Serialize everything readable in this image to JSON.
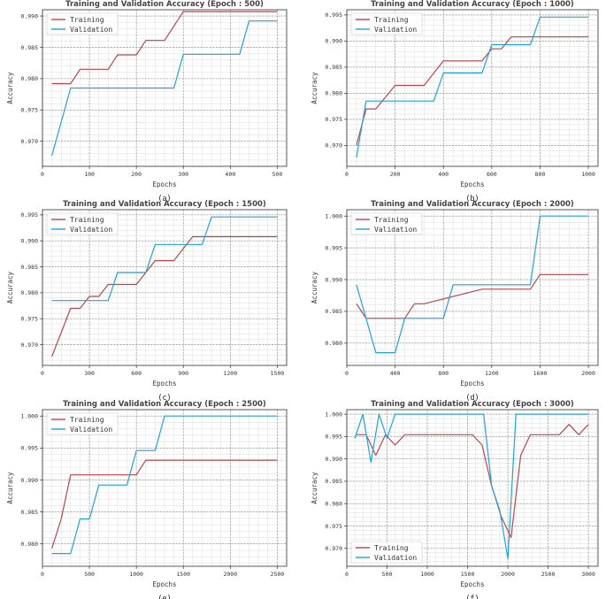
{
  "colors": {
    "training": "#b5474e",
    "validation": "#22a2d9",
    "grid_major": "#888888",
    "grid_minor": "#dddddd",
    "axis": "#333333"
  },
  "chart_data": [
    {
      "type": "line",
      "caption": "(a)",
      "title": "Training and Validation Accuracy (Epoch : 500)",
      "xlabel": "Epochs",
      "ylabel": "Accuracy",
      "xlim": [
        0,
        520
      ],
      "ylim": [
        0.966,
        0.991
      ],
      "xticks": [
        0,
        100,
        200,
        300,
        400,
        500
      ],
      "xtick_labels": [
        "0",
        "100",
        "200",
        "300",
        "400",
        "500"
      ],
      "yticks": [
        0.97,
        0.975,
        0.98,
        0.985,
        0.99
      ],
      "ytick_labels": [
        "0.970",
        "0.975",
        "0.980",
        "0.985",
        "0.990"
      ],
      "legend_loc": "top-left",
      "series": [
        {
          "name": "Training",
          "x": [
            20,
            60,
            80,
            140,
            160,
            200,
            220,
            260,
            280,
            300,
            500
          ],
          "y": [
            0.9792,
            0.9792,
            0.9815,
            0.9815,
            0.9838,
            0.9838,
            0.9861,
            0.9861,
            0.9884,
            0.9907,
            0.9907
          ]
        },
        {
          "name": "Validation",
          "x": [
            20,
            60,
            280,
            300,
            420,
            440,
            500
          ],
          "y": [
            0.9677,
            0.9785,
            0.9785,
            0.9839,
            0.9839,
            0.9892,
            0.9892
          ]
        }
      ]
    },
    {
      "type": "line",
      "caption": "(b)",
      "title": "Training and Validation Accuracy (Epoch : 1000)",
      "xlabel": "Epochs",
      "ylabel": "Accuracy",
      "xlim": [
        0,
        1040
      ],
      "ylim": [
        0.966,
        0.996
      ],
      "xticks": [
        0,
        200,
        400,
        600,
        800,
        1000
      ],
      "xtick_labels": [
        "0",
        "200",
        "400",
        "600",
        "800",
        "1000"
      ],
      "yticks": [
        0.97,
        0.975,
        0.98,
        0.985,
        0.99,
        0.995
      ],
      "ytick_labels": [
        "0.970",
        "0.975",
        "0.980",
        "0.985",
        "0.990",
        "0.995"
      ],
      "legend_loc": "top-left",
      "series": [
        {
          "name": "Training",
          "x": [
            40,
            80,
            120,
            200,
            320,
            400,
            560,
            600,
            640,
            680,
            1000
          ],
          "y": [
            0.97,
            0.977,
            0.977,
            0.9815,
            0.9815,
            0.9862,
            0.9862,
            0.9885,
            0.9885,
            0.9908,
            0.9908
          ]
        },
        {
          "name": "Validation",
          "x": [
            40,
            80,
            360,
            400,
            560,
            600,
            760,
            800,
            1000
          ],
          "y": [
            0.9677,
            0.9785,
            0.9785,
            0.9839,
            0.9839,
            0.9893,
            0.9893,
            0.9946,
            0.9946
          ]
        }
      ]
    },
    {
      "type": "line",
      "caption": "(c)",
      "title": "Training and Validation Accuracy (Epoch : 1500)",
      "xlabel": "Epochs",
      "ylabel": "Accuracy",
      "xlim": [
        0,
        1560
      ],
      "ylim": [
        0.966,
        0.996
      ],
      "xticks": [
        0,
        300,
        600,
        900,
        1200,
        1500
      ],
      "xtick_labels": [
        "0",
        "300",
        "600",
        "900",
        "1200",
        "1500"
      ],
      "yticks": [
        0.97,
        0.975,
        0.98,
        0.985,
        0.99,
        0.995
      ],
      "ytick_labels": [
        "0.970",
        "0.975",
        "0.980",
        "0.985",
        "0.990",
        "0.995"
      ],
      "legend_loc": "top-left",
      "series": [
        {
          "name": "Training",
          "x": [
            60,
            180,
            240,
            300,
            360,
            420,
            600,
            720,
            840,
            960,
            1500
          ],
          "y": [
            0.9677,
            0.977,
            0.977,
            0.9793,
            0.9793,
            0.9816,
            0.9816,
            0.9862,
            0.9862,
            0.9908,
            0.9908
          ]
        },
        {
          "name": "Validation",
          "x": [
            60,
            420,
            480,
            660,
            720,
            960,
            1020,
            1080,
            1500
          ],
          "y": [
            0.9785,
            0.9785,
            0.9839,
            0.9839,
            0.9893,
            0.9893,
            0.9893,
            0.9946,
            0.9946
          ]
        }
      ]
    },
    {
      "type": "line",
      "caption": "(d)",
      "title": "Training and Validation Accuracy (Epoch : 2000)",
      "xlabel": "Epochs",
      "ylabel": "Accuracy",
      "xlim": [
        0,
        2080
      ],
      "ylim": [
        0.9765,
        1.001
      ],
      "xticks": [
        0,
        400,
        800,
        1200,
        1600,
        2000
      ],
      "xtick_labels": [
        "0",
        "400",
        "800",
        "1200",
        "1600",
        "2000"
      ],
      "yticks": [
        0.98,
        0.985,
        0.99,
        0.995,
        1.0
      ],
      "ytick_labels": [
        "0.980",
        "0.985",
        "0.990",
        "0.995",
        "1.000"
      ],
      "legend_loc": "top-left",
      "series": [
        {
          "name": "Training",
          "x": [
            80,
            160,
            400,
            480,
            560,
            640,
            1120,
            1200,
            1280,
            1360,
            1520,
            1600,
            2000
          ],
          "y": [
            0.9862,
            0.9839,
            0.9839,
            0.9839,
            0.9862,
            0.9862,
            0.9885,
            0.9885,
            0.9885,
            0.9885,
            0.9885,
            0.9908,
            0.9908
          ]
        },
        {
          "name": "Validation",
          "x": [
            80,
            160,
            240,
            400,
            480,
            800,
            880,
            1120,
            1200,
            1440,
            1520,
            1600,
            2000
          ],
          "y": [
            0.9892,
            0.9839,
            0.9785,
            0.9785,
            0.9839,
            0.9839,
            0.9892,
            0.9892,
            0.9892,
            0.9892,
            0.9892,
            1.0,
            1.0
          ]
        }
      ]
    },
    {
      "type": "line",
      "caption": "(e)",
      "title": "Training and Validation Accuracy (Epoch : 2500)",
      "xlabel": "Epochs",
      "ylabel": "Accuracy",
      "xlim": [
        0,
        2600
      ],
      "ylim": [
        0.9765,
        1.001
      ],
      "xticks": [
        0,
        500,
        1000,
        1500,
        2000,
        2500
      ],
      "xtick_labels": [
        "0",
        "500",
        "1000",
        "1500",
        "2000",
        "2500"
      ],
      "yticks": [
        0.98,
        0.985,
        0.99,
        0.995,
        1.0
      ],
      "ytick_labels": [
        "0.980",
        "0.985",
        "0.990",
        "0.995",
        "1.000"
      ],
      "legend_loc": "top-left",
      "series": [
        {
          "name": "Training",
          "x": [
            100,
            200,
            300,
            1000,
            1100,
            2500
          ],
          "y": [
            0.9793,
            0.9839,
            0.9908,
            0.9908,
            0.9931,
            0.9931
          ]
        },
        {
          "name": "Validation",
          "x": [
            100,
            300,
            400,
            500,
            600,
            900,
            1000,
            1200,
            1300,
            2500
          ],
          "y": [
            0.9785,
            0.9785,
            0.9839,
            0.9839,
            0.9892,
            0.9892,
            0.9946,
            0.9946,
            1.0,
            1.0
          ]
        }
      ]
    },
    {
      "type": "line",
      "caption": "(f)",
      "title": "Training and Validation Accuracy (Epoch : 3000)",
      "xlabel": "Epochs",
      "ylabel": "Accuracy",
      "xlim": [
        0,
        3120
      ],
      "ylim": [
        0.966,
        1.001
      ],
      "xticks": [
        0,
        500,
        1000,
        1500,
        2000,
        2500,
        3000
      ],
      "xtick_labels": [
        "0",
        "500",
        "1000",
        "1500",
        "2000",
        "2500",
        "3000"
      ],
      "yticks": [
        0.97,
        0.975,
        0.98,
        0.985,
        0.99,
        0.995,
        1.0
      ],
      "ytick_labels": [
        "0.970",
        "0.975",
        "0.980",
        "0.985",
        "0.990",
        "0.995",
        "1.000"
      ],
      "legend_loc": "bottom-left",
      "series": [
        {
          "name": "Training",
          "x": [
            120,
            240,
            360,
            480,
            600,
            720,
            840,
            960,
            1080,
            1200,
            1320,
            1440,
            1560,
            1680,
            1800,
            1920,
            2040,
            2160,
            2280,
            2400,
            2520,
            2640,
            2760,
            2880,
            3000
          ],
          "y": [
            0.9954,
            0.9954,
            0.9908,
            0.9954,
            0.9931,
            0.9954,
            0.9954,
            0.9954,
            0.9954,
            0.9954,
            0.9954,
            0.9954,
            0.9954,
            0.9931,
            0.9839,
            0.977,
            0.9724,
            0.9908,
            0.9954,
            0.9954,
            0.9954,
            0.9954,
            0.9977,
            0.9954,
            0.9977
          ]
        },
        {
          "name": "Validation",
          "x": [
            100,
            200,
            300,
            400,
            500,
            600,
            700,
            800,
            1000,
            1100,
            1200,
            1600,
            1700,
            1800,
            1900,
            2000,
            2100,
            2200,
            3000
          ],
          "y": [
            0.9946,
            1.0,
            0.9892,
            1.0,
            0.9946,
            1.0,
            1.0,
            1.0,
            1.0,
            1.0,
            1.0,
            1.0,
            1.0,
            0.9839,
            0.9785,
            0.9677,
            1.0,
            1.0,
            1.0
          ]
        }
      ]
    }
  ]
}
